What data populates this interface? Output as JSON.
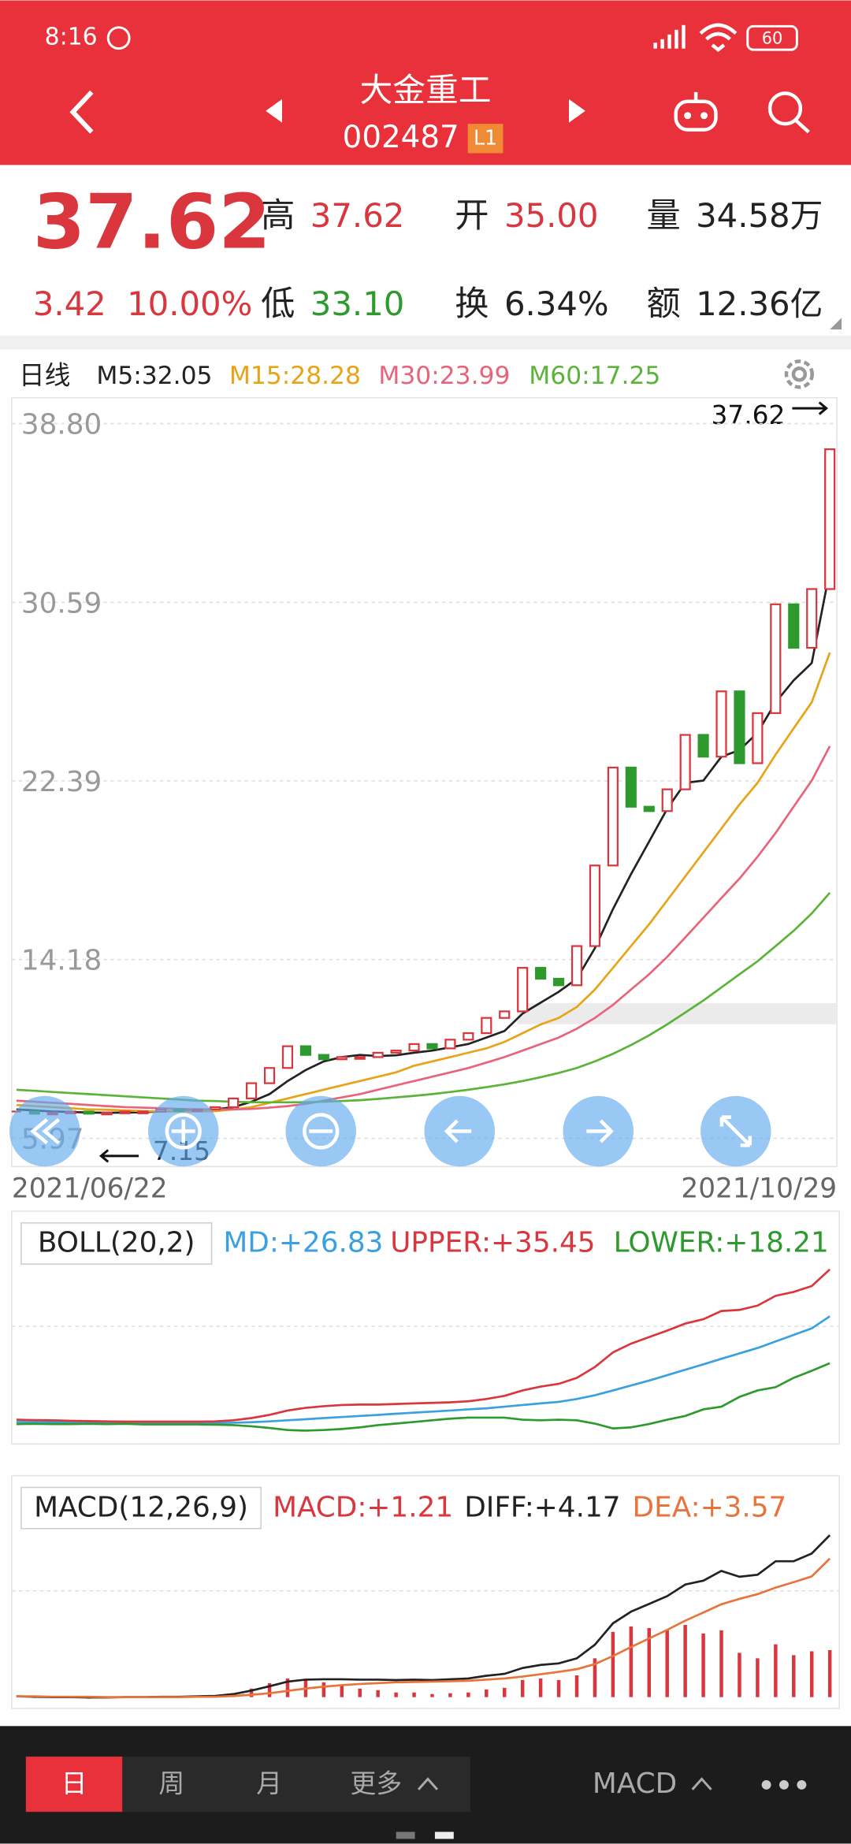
{
  "status_bar": {
    "time": "8:16",
    "battery": "60"
  },
  "header": {
    "title": "大金重工",
    "code": "002487",
    "badge": "L1"
  },
  "quote": {
    "price": "37.62",
    "change": "3.42",
    "change_pct": "10.00%",
    "fields": [
      {
        "label": "高",
        "value": "37.62",
        "color": "#d9363e"
      },
      {
        "label": "开",
        "value": "35.00",
        "color": "#d9363e"
      },
      {
        "label": "量",
        "value": "34.58万",
        "color": "#222222"
      },
      {
        "label": "低",
        "value": "33.10",
        "color": "#2e9a2e"
      },
      {
        "label": "换",
        "value": "6.34%",
        "color": "#222222"
      },
      {
        "label": "额",
        "value": "12.36亿",
        "color": "#222222"
      }
    ]
  },
  "chart_data": [
    {
      "type": "candlestick",
      "title": "日线",
      "x_labels": [
        "2021/06/22",
        "2021/10/29"
      ],
      "up_color": "#d9363e",
      "down_color": "#2e9a2e",
      "ylim": [
        5.97,
        38.8
      ],
      "yticks": [
        {
          "value": 38.8,
          "label": "38.80"
        },
        30.59,
        22.39,
        14.18,
        5.97
      ],
      "grid": true,
      "annotations": [
        {
          "text": "37.62"
        },
        {
          "text": "7.15"
        }
      ],
      "close": [
        7.2,
        7.1,
        7.15,
        7.2,
        7.1,
        7.15,
        7.2,
        7.2,
        7.3,
        7.25,
        7.3,
        7.4,
        7.8,
        8.5,
        9.2,
        10.2,
        9.8,
        9.6,
        9.7,
        9.7,
        9.9,
        10.0,
        10.3,
        10.1,
        10.5,
        10.8,
        11.5,
        11.8,
        13.8,
        13.3,
        13.0,
        14.8,
        18.5,
        23.0,
        21.2,
        21.0,
        22.0,
        24.5,
        23.5,
        26.5,
        23.2,
        25.5,
        30.5,
        28.5,
        31.2,
        37.62
      ],
      "series": [
        {
          "name": "M5:32.05",
          "color": "#222222",
          "values": [
            7.3,
            7.25,
            7.2,
            7.18,
            7.15,
            7.14,
            7.15,
            7.17,
            7.2,
            7.22,
            7.25,
            7.3,
            7.4,
            7.65,
            8.0,
            8.6,
            9.1,
            9.5,
            9.7,
            9.8,
            9.75,
            9.78,
            9.9,
            10.0,
            10.15,
            10.3,
            10.6,
            10.9,
            11.7,
            12.2,
            12.7,
            13.3,
            14.7,
            16.5,
            18.1,
            19.6,
            21.1,
            22.3,
            22.4,
            23.5,
            23.8,
            24.6,
            26.0,
            27.0,
            27.8,
            32.05
          ]
        },
        {
          "name": "M15:28.28",
          "color": "#e8a317",
          "values": [
            7.5,
            7.45,
            7.4,
            7.35,
            7.3,
            7.28,
            7.25,
            7.22,
            7.2,
            7.2,
            7.2,
            7.22,
            7.3,
            7.4,
            7.6,
            7.8,
            8.0,
            8.2,
            8.4,
            8.6,
            8.8,
            9.0,
            9.3,
            9.5,
            9.7,
            9.9,
            10.1,
            10.4,
            10.8,
            11.2,
            11.5,
            12.0,
            12.8,
            13.8,
            14.8,
            15.8,
            16.9,
            18.0,
            19.1,
            20.2,
            21.3,
            22.3,
            23.6,
            24.8,
            26.0,
            28.28
          ]
        },
        {
          "name": "M30:23.99",
          "color": "#e8647a",
          "values": [
            7.7,
            7.65,
            7.6,
            7.55,
            7.5,
            7.45,
            7.4,
            7.38,
            7.35,
            7.32,
            7.3,
            7.3,
            7.3,
            7.32,
            7.38,
            7.45,
            7.55,
            7.7,
            7.85,
            8.0,
            8.2,
            8.4,
            8.6,
            8.8,
            9.0,
            9.2,
            9.45,
            9.7,
            10.0,
            10.3,
            10.6,
            11.0,
            11.5,
            12.1,
            12.8,
            13.5,
            14.3,
            15.2,
            16.1,
            17.0,
            17.9,
            18.9,
            20.0,
            21.2,
            22.4,
            23.99
          ]
        },
        {
          "name": "M60:17.25",
          "color": "#5cb33a",
          "values": [
            8.2,
            8.15,
            8.1,
            8.05,
            8.0,
            7.95,
            7.9,
            7.85,
            7.8,
            7.75,
            7.7,
            7.68,
            7.65,
            7.63,
            7.62,
            7.62,
            7.63,
            7.65,
            7.68,
            7.72,
            7.78,
            7.85,
            7.92,
            8.0,
            8.1,
            8.2,
            8.32,
            8.45,
            8.6,
            8.78,
            8.97,
            9.2,
            9.5,
            9.85,
            10.25,
            10.7,
            11.2,
            11.75,
            12.3,
            12.9,
            13.5,
            14.1,
            14.8,
            15.5,
            16.3,
            17.25
          ]
        }
      ]
    },
    {
      "type": "line",
      "title": "BOLL(20,2)",
      "ylim": [
        4,
        44
      ],
      "series": [
        {
          "name": "MD:+26.83",
          "color": "#3aa0e0",
          "values": [
            7.4,
            7.4,
            7.35,
            7.3,
            7.3,
            7.25,
            7.25,
            7.2,
            7.2,
            7.2,
            7.2,
            7.2,
            7.25,
            7.35,
            7.5,
            7.7,
            7.9,
            8.1,
            8.3,
            8.5,
            8.7,
            8.9,
            9.1,
            9.3,
            9.5,
            9.7,
            9.9,
            10.2,
            10.5,
            10.8,
            11.1,
            11.6,
            12.3,
            13.2,
            14.1,
            15.0,
            16.0,
            17.0,
            18.0,
            19.0,
            20.0,
            21.0,
            22.2,
            23.4,
            24.6,
            26.83
          ]
        },
        {
          "name": "UPPER:+35.45",
          "color": "#d9363e",
          "values": [
            7.8,
            7.75,
            7.7,
            7.6,
            7.55,
            7.5,
            7.45,
            7.45,
            7.45,
            7.45,
            7.45,
            7.5,
            7.7,
            8.1,
            8.7,
            9.5,
            10.0,
            10.3,
            10.5,
            10.6,
            10.6,
            10.7,
            10.8,
            10.9,
            11.0,
            11.2,
            11.6,
            12.2,
            13.2,
            13.9,
            14.4,
            15.5,
            17.5,
            20.2,
            21.8,
            23.0,
            24.2,
            25.5,
            26.3,
            27.8,
            28.0,
            28.8,
            30.6,
            31.3,
            32.4,
            35.45
          ]
        },
        {
          "name": "LOWER:+18.21",
          "color": "#2e9a2e",
          "values": [
            7.0,
            7.05,
            7.0,
            7.0,
            7.05,
            7.0,
            7.05,
            6.95,
            6.95,
            6.95,
            6.95,
            6.9,
            6.8,
            6.6,
            6.3,
            5.9,
            5.8,
            5.9,
            6.1,
            6.4,
            6.8,
            7.1,
            7.4,
            7.7,
            8.0,
            8.2,
            8.2,
            8.2,
            7.8,
            7.7,
            7.8,
            7.7,
            7.1,
            6.2,
            6.4,
            7.0,
            7.8,
            8.5,
            9.7,
            10.2,
            12.0,
            13.2,
            13.8,
            15.5,
            16.8,
            18.21
          ]
        }
      ]
    },
    {
      "type": "macd",
      "title": "MACD(12,26,9)",
      "ylim": [
        -0.2,
        5.4
      ],
      "series": [
        {
          "name": "MACD:+1.21",
          "type": "bar",
          "color": "#d9363e",
          "negative_color": "#2e9a2e",
          "values": [
            0,
            -0.02,
            -0.02,
            -0.02,
            -0.04,
            -0.02,
            0,
            0,
            0.02,
            0.02,
            0.02,
            0.04,
            0.1,
            0.22,
            0.36,
            0.48,
            0.46,
            0.38,
            0.3,
            0.22,
            0.18,
            0.12,
            0.12,
            0.08,
            0.1,
            0.12,
            0.2,
            0.24,
            0.44,
            0.48,
            0.44,
            0.56,
            1.0,
            1.68,
            1.82,
            1.78,
            1.74,
            1.86,
            1.64,
            1.72,
            1.14,
            1.0,
            1.36,
            1.08,
            1.18,
            1.21
          ]
        },
        {
          "name": "DIFF:+4.17",
          "type": "line",
          "color": "#222222",
          "values": [
            0.02,
            0.01,
            0,
            0,
            -0.01,
            -0.01,
            0,
            0,
            0.01,
            0.01,
            0.02,
            0.03,
            0.08,
            0.17,
            0.28,
            0.4,
            0.45,
            0.46,
            0.46,
            0.45,
            0.45,
            0.44,
            0.45,
            0.44,
            0.46,
            0.48,
            0.55,
            0.6,
            0.75,
            0.83,
            0.87,
            1.0,
            1.35,
            1.9,
            2.2,
            2.4,
            2.6,
            2.9,
            3.0,
            3.25,
            3.1,
            3.15,
            3.5,
            3.5,
            3.7,
            4.17
          ]
        },
        {
          "name": "DEA:+3.57",
          "type": "line",
          "color": "#e8743b",
          "values": [
            0.02,
            0.02,
            0.01,
            0.01,
            0.01,
            0,
            0,
            0,
            0,
            0,
            0.01,
            0.01,
            0.03,
            0.06,
            0.1,
            0.16,
            0.22,
            0.27,
            0.31,
            0.34,
            0.36,
            0.38,
            0.39,
            0.4,
            0.41,
            0.42,
            0.45,
            0.48,
            0.53,
            0.59,
            0.65,
            0.72,
            0.85,
            1.06,
            1.29,
            1.51,
            1.73,
            1.97,
            2.18,
            2.39,
            2.53,
            2.65,
            2.82,
            2.96,
            3.11,
            3.57
          ]
        }
      ]
    }
  ],
  "toolbar": {
    "tabs": [
      "日",
      "周",
      "月",
      "更多"
    ],
    "indicator": "MACD"
  }
}
